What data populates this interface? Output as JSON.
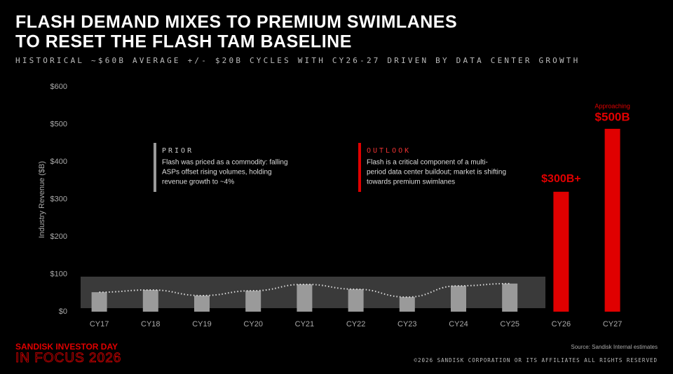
{
  "chart_data": {
    "type": "bar",
    "title_lines": [
      "FLASH DEMAND MIXES TO PREMIUM SWIMLANES",
      "TO RESET THE FLASH TAM BASELINE"
    ],
    "subtitle": "HISTORICAL ~$60B AVERAGE +/- $20B CYCLES WITH CY26-27 DRIVEN BY DATA CENTER GROWTH",
    "y_label": "Industry Revenue ($B)",
    "categories": [
      "CY17",
      "CY18",
      "CY19",
      "CY20",
      "CY21",
      "CY22",
      "CY23",
      "CY24",
      "CY25",
      "CY26",
      "CY27"
    ],
    "values": [
      52,
      58,
      43,
      56,
      73,
      60,
      39,
      69,
      75,
      320,
      488
    ],
    "colors": [
      "#9a9a9a",
      "#9a9a9a",
      "#9a9a9a",
      "#9a9a9a",
      "#9a9a9a",
      "#9a9a9a",
      "#9a9a9a",
      "#9a9a9a",
      "#9a9a9a",
      "#e00000",
      "#e00000"
    ],
    "ylim": [
      0,
      600
    ],
    "yticks": [
      {
        "value": 0,
        "label": "$0"
      },
      {
        "value": 100,
        "label": "$100"
      },
      {
        "value": 200,
        "label": "$200"
      },
      {
        "value": 300,
        "label": "$300"
      },
      {
        "value": 400,
        "label": "$400"
      },
      {
        "value": 500,
        "label": "$500"
      },
      {
        "value": 600,
        "label": "$600"
      }
    ],
    "annotations": {
      "cy26": "$300B+",
      "cy27_small": "Approaching",
      "cy27": "$500B"
    },
    "callouts": [
      {
        "heading": "PRIOR",
        "lines": [
          "Flash was priced as a commodity: falling",
          "ASPs offset rising volumes, holding",
          "revenue growth to ~4%"
        ]
      },
      {
        "heading": "OUTLOOK",
        "lines": [
          "Flash is a critical component of a multi-",
          "period data center buildout; market is shifting",
          "towards premium swimlanes"
        ]
      }
    ],
    "footer": {
      "brand": "SANDISK INVESTOR DAY",
      "event": "IN FOCUS 2026",
      "source": "Source: Sandisk Internal estimates",
      "copyright": "©2026 SANDISK CORPORATION OR ITS AFFILIATES ALL RIGHTS RESERVED"
    }
  }
}
